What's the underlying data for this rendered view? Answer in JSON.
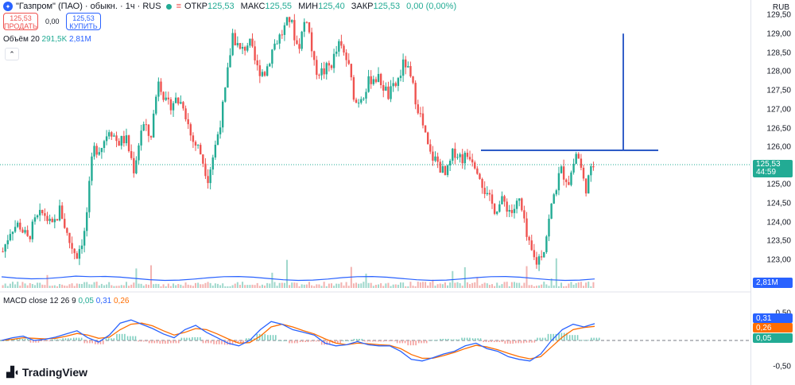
{
  "legend": {
    "symbol": "\"Газпром\" (ПАО) · обыкн. · 1ч · RUS",
    "ohlc": [
      {
        "label": "ОТКР",
        "value": "125,53"
      },
      {
        "label": "МАКС",
        "value": "125,55"
      },
      {
        "label": "МИН",
        "value": "125,40"
      },
      {
        "label": "ЗАКР",
        "value": "125,53"
      },
      {
        "label": "",
        "value": "0,00 (0,00%)"
      }
    ]
  },
  "trade": {
    "sell_price": "125,53",
    "sell_label": "ПРОДАТЬ",
    "spread": "0,00",
    "buy_price": "125,53",
    "buy_label": "КУПИТЬ"
  },
  "volume": {
    "label": "Объём 20",
    "value1": "291,5K",
    "value2": "2,81M"
  },
  "macd": {
    "label": "MACD close 12 26 9",
    "hist": "0,05",
    "macd": "0,31",
    "signal": "0,26"
  },
  "axis": {
    "currency": "RUB",
    "ticks": [
      "129,50",
      "129,00",
      "128,50",
      "128,00",
      "127,50",
      "127,00",
      "126,50",
      "126,00",
      "125,00",
      "124,50",
      "124,00",
      "123,50",
      "123,00"
    ],
    "macd_ticks": [
      "0,50",
      "-0,50"
    ]
  },
  "badges": {
    "price": "125,53",
    "countdown": "44:59",
    "volume": "2,81M",
    "macd": "0,31",
    "signal": "0,26",
    "hist": "0,05"
  },
  "colors": {
    "up": "#22ab94",
    "down": "#ef5350",
    "macd": "#2962ff",
    "signal": "#ff6d00",
    "drawing": "#1e4fc2"
  },
  "brand": "TradingView",
  "chart_data": {
    "type": "candlestick",
    "interval": "1h",
    "y_range": [
      122.75,
      129.6
    ],
    "last_price": 125.53,
    "price_path": [
      123.3,
      123.9,
      124.0,
      123.6,
      124.1,
      124.3,
      123.9,
      124.4,
      123.6,
      123.2,
      123.8,
      125.9,
      126.0,
      126.5,
      126.1,
      126.2,
      125.4,
      126.6,
      126.2,
      127.8,
      127.0,
      127.2,
      127.1,
      126.2,
      125.9,
      125.2,
      126.1,
      127.2,
      128.9,
      128.4,
      128.7,
      128.0,
      127.9,
      128.6,
      128.9,
      129.3,
      128.5,
      129.4,
      128.0,
      127.9,
      128.1,
      128.6,
      128.2,
      127.1,
      127.4,
      127.8,
      127.7,
      127.3,
      127.6,
      128.2,
      127.5,
      126.7,
      125.8,
      125.6,
      125.2,
      125.9,
      125.7,
      125.8,
      125.4,
      124.7,
      124.4,
      124.6,
      124.3,
      124.6,
      123.5,
      123.0,
      123.4,
      124.6,
      125.4,
      125.1,
      125.9,
      124.9,
      125.53
    ],
    "volume_ma_level": "low",
    "macd_series": {
      "macd": [
        0.0,
        0.05,
        0.08,
        0.0,
        0.02,
        0.06,
        0.12,
        0.18,
        0.05,
        -0.03,
        0.1,
        0.32,
        0.38,
        0.3,
        0.22,
        0.12,
        0.05,
        0.2,
        0.28,
        0.15,
        0.05,
        -0.05,
        -0.1,
        0.0,
        0.2,
        0.35,
        0.3,
        0.2,
        0.15,
        0.1,
        -0.05,
        -0.1,
        -0.08,
        -0.02,
        -0.08,
        -0.1,
        -0.1,
        -0.2,
        -0.35,
        -0.38,
        -0.32,
        -0.25,
        -0.2,
        -0.1,
        -0.05,
        -0.15,
        -0.2,
        -0.3,
        -0.35,
        -0.38,
        -0.25,
        0.0,
        0.2,
        0.3,
        0.25,
        0.31
      ],
      "signal": [
        0.0,
        0.02,
        0.05,
        0.04,
        0.03,
        0.04,
        0.08,
        0.13,
        0.1,
        0.04,
        0.06,
        0.2,
        0.3,
        0.32,
        0.27,
        0.18,
        0.1,
        0.15,
        0.22,
        0.2,
        0.12,
        0.03,
        -0.05,
        -0.04,
        0.08,
        0.25,
        0.3,
        0.25,
        0.18,
        0.12,
        0.03,
        -0.05,
        -0.08,
        -0.05,
        -0.06,
        -0.08,
        -0.09,
        -0.15,
        -0.26,
        -0.33,
        -0.33,
        -0.28,
        -0.22,
        -0.15,
        -0.09,
        -0.12,
        -0.17,
        -0.24,
        -0.3,
        -0.34,
        -0.3,
        -0.12,
        0.06,
        0.2,
        0.24,
        0.26
      ]
    },
    "drawings": [
      {
        "type": "horizontal-segment",
        "price": 125.9
      },
      {
        "type": "vertical-segment",
        "from_price": 125.9,
        "to_price": 128.9
      }
    ]
  }
}
